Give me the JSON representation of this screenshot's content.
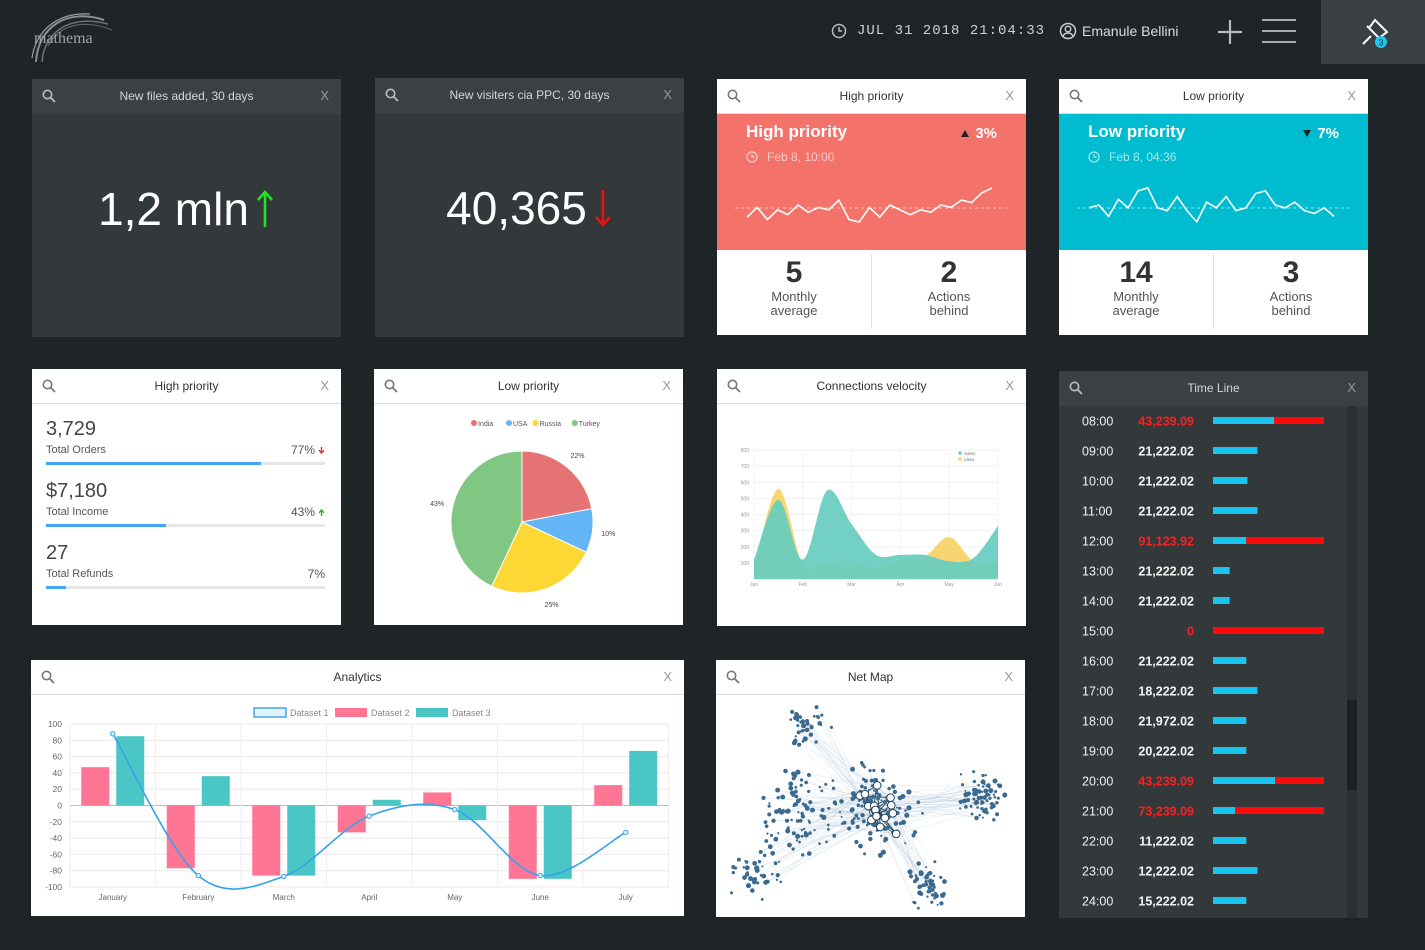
{
  "header": {
    "logo": "mathema",
    "datetime": "JUL 31 2018 21:04:33",
    "user": "Emanule Bellini",
    "pin_badge": "3"
  },
  "files_panel": {
    "title": "New files added, 30 days",
    "close": "X",
    "value": "1,2 mln",
    "trend": "up"
  },
  "ppc_panel": {
    "title": "New visiters cia PPC, 30 days",
    "close": "X",
    "value": "40,365",
    "trend": "down"
  },
  "high_card": {
    "title": "High priority",
    "close": "X",
    "heading": "High priority",
    "change": "3%",
    "direction": "up",
    "time": "Feb 8, 10:00",
    "color": "#f3726a",
    "sparkline": [
      5,
      9,
      4,
      8,
      6,
      10,
      7,
      9,
      8,
      12,
      4,
      3,
      9,
      5,
      10,
      8,
      6,
      8,
      7,
      10,
      9,
      12,
      11,
      15,
      17
    ],
    "stats": [
      {
        "value": "5",
        "label": "Monthly average"
      },
      {
        "value": "2",
        "label": "Actions behind"
      }
    ]
  },
  "low_card": {
    "title": "Low priority",
    "close": "X",
    "heading": "Low priority",
    "change": "7%",
    "direction": "down",
    "time": "Feb 8, 04:36",
    "color": "#00bcd0",
    "sparkline": [
      9,
      10,
      6,
      12,
      9,
      15,
      16,
      9,
      8,
      13,
      8,
      4,
      11,
      9,
      13,
      8,
      9,
      14,
      15,
      10,
      9,
      11,
      8,
      7,
      9,
      6
    ],
    "stats": [
      {
        "value": "14",
        "label": "Monthly average"
      },
      {
        "value": "3",
        "label": "Actions behind"
      }
    ]
  },
  "stats_panel": {
    "title": "High priority",
    "close": "X",
    "items": [
      {
        "value": "3,729",
        "label": "Total Orders",
        "percent": 77,
        "percent_label": "77%",
        "trend": "down"
      },
      {
        "value": "$7,180",
        "label": "Total Income",
        "percent": 43,
        "percent_label": "43%",
        "trend": "up"
      },
      {
        "value": "27",
        "label": "Total Refunds",
        "percent": 7,
        "percent_label": "7%"
      }
    ]
  },
  "pie_panel": {
    "title": "Low priority",
    "close": "X",
    "chart_data": {
      "type": "pie",
      "categories": [
        "India",
        "USA",
        "Russia",
        "Turkey"
      ],
      "values": [
        22,
        10,
        25,
        43
      ],
      "value_labels": [
        "22%",
        "10%",
        "25%",
        "43%"
      ],
      "colors": [
        "#e57373",
        "#64b5f6",
        "#fdd835",
        "#81c784"
      ]
    }
  },
  "velocity_panel": {
    "title": "Connections velocity",
    "close": "X",
    "chart_data": {
      "type": "area",
      "categories": [
        "Jan",
        null,
        "Feb",
        null,
        "Mar",
        null,
        "Apr",
        null,
        "May",
        null,
        "Jun"
      ],
      "series": [
        {
          "name": "Sales",
          "color": "#66cdbf",
          "values": [
            120,
            490,
            120,
            550,
            340,
            150,
            150,
            150,
            110,
            130,
            330
          ]
        },
        {
          "name": "Likes",
          "color": "#f6d365",
          "values": [
            60,
            560,
            90,
            100,
            110,
            60,
            120,
            140,
            260,
            110,
            100
          ]
        }
      ],
      "ylim": [
        0,
        800
      ],
      "yticks": [
        100,
        200,
        300,
        400,
        500,
        600,
        700,
        800
      ],
      "grid": true
    }
  },
  "analytics_panel": {
    "title": "Analytics",
    "close": "X",
    "chart_data": {
      "type": "bar",
      "categories": [
        "January",
        "February",
        "March",
        "April",
        "May",
        "June",
        "July"
      ],
      "series": [
        {
          "name": "Dataset 1",
          "type": "line",
          "color": "#36a2eb",
          "values": [
            88,
            -86,
            -87,
            -13,
            -5,
            -86,
            -33
          ]
        },
        {
          "name": "Dataset 2",
          "color": "#ff7594",
          "values": [
            47,
            -77,
            -86,
            -33,
            16,
            -90,
            25
          ]
        },
        {
          "name": "Dataset 3",
          "color": "#4bc6c6",
          "values": [
            85,
            36,
            -86,
            7,
            -18,
            -90,
            67
          ]
        }
      ],
      "ylim": [
        -100,
        100
      ],
      "yticks": [
        -100,
        -80,
        -60,
        -40,
        -20,
        0,
        20,
        40,
        60,
        80,
        100
      ],
      "grid": true
    }
  },
  "timeline_panel": {
    "title": "Time Line",
    "close": "X",
    "rows": [
      {
        "time": "08:00",
        "value": "43,239.09",
        "alert": true,
        "blue": 55,
        "red": 45
      },
      {
        "time": "09:00",
        "value": "21,222.02",
        "alert": false,
        "blue": 40
      },
      {
        "time": "10:00",
        "value": "21,222.02",
        "alert": false,
        "blue": 31
      },
      {
        "time": "11:00",
        "value": "21,222.02",
        "alert": false,
        "blue": 40
      },
      {
        "time": "12:00",
        "value": "91,123.92",
        "alert": true,
        "blue": 30,
        "red": 70
      },
      {
        "time": "13:00",
        "value": "21,222.02",
        "alert": false,
        "blue": 15
      },
      {
        "time": "14:00",
        "value": "21,222.02",
        "alert": false,
        "blue": 15
      },
      {
        "time": "15:00",
        "value": "0",
        "alert": true,
        "red": 100
      },
      {
        "time": "16:00",
        "value": "21,222.02",
        "alert": false,
        "blue": 30
      },
      {
        "time": "17:00",
        "value": "18,222.02",
        "alert": false,
        "blue": 40
      },
      {
        "time": "18:00",
        "value": "21,972.02",
        "alert": false,
        "blue": 30
      },
      {
        "time": "19:00",
        "value": "20,222.02",
        "alert": false,
        "blue": 30
      },
      {
        "time": "20:00",
        "value": "43,239.09",
        "alert": true,
        "blue": 56,
        "red": 44
      },
      {
        "time": "21:00",
        "value": "73,239.09",
        "alert": true,
        "blue": 20,
        "red": 80
      },
      {
        "time": "22:00",
        "value": "11,222.02",
        "alert": false,
        "blue": 30
      },
      {
        "time": "23:00",
        "value": "12,222.02",
        "alert": false,
        "blue": 40
      },
      {
        "time": "24:00",
        "value": "15,222.02",
        "alert": false,
        "blue": 30
      }
    ]
  },
  "netmap_panel": {
    "title": "Net Map",
    "close": "X"
  }
}
